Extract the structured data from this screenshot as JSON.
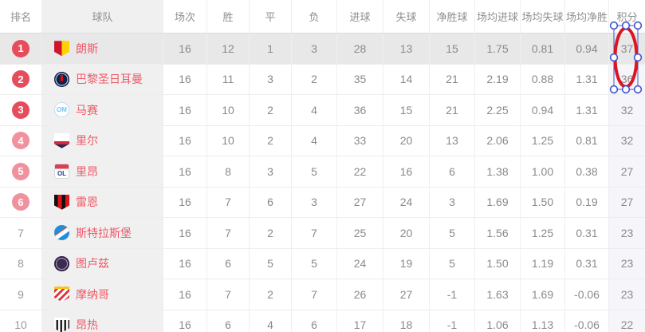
{
  "table": {
    "columns": [
      "排名",
      "球队",
      "场次",
      "胜",
      "平",
      "负",
      "进球",
      "失球",
      "净胜球",
      "场均进球",
      "场均失球",
      "场均净胜",
      "积分"
    ],
    "rows": [
      {
        "rank": "1",
        "rank_style": "red",
        "team": "朗斯",
        "badge": "lens",
        "badge_text": "",
        "stats": [
          "16",
          "12",
          "1",
          "3",
          "28",
          "13",
          "15",
          "1.75",
          "0.81",
          "0.94"
        ],
        "points": "37",
        "highlight": true
      },
      {
        "rank": "2",
        "rank_style": "red",
        "team": "巴黎圣日耳曼",
        "badge": "psg",
        "badge_text": "",
        "stats": [
          "16",
          "11",
          "3",
          "2",
          "35",
          "14",
          "21",
          "2.19",
          "0.88",
          "1.31"
        ],
        "points": "36",
        "highlight": false
      },
      {
        "rank": "3",
        "rank_style": "red",
        "team": "马赛",
        "badge": "marseille",
        "badge_text": "OM",
        "stats": [
          "16",
          "10",
          "2",
          "4",
          "36",
          "15",
          "21",
          "2.25",
          "0.94",
          "1.31"
        ],
        "points": "32",
        "highlight": false
      },
      {
        "rank": "4",
        "rank_style": "pink",
        "team": "里尔",
        "badge": "lille",
        "badge_text": "",
        "stats": [
          "16",
          "10",
          "2",
          "4",
          "33",
          "20",
          "13",
          "2.06",
          "1.25",
          "0.81"
        ],
        "points": "32",
        "highlight": false
      },
      {
        "rank": "5",
        "rank_style": "pink",
        "team": "里昂",
        "badge": "lyon",
        "badge_text": "OL",
        "stats": [
          "16",
          "8",
          "3",
          "5",
          "22",
          "16",
          "6",
          "1.38",
          "1.00",
          "0.38"
        ],
        "points": "27",
        "highlight": false
      },
      {
        "rank": "6",
        "rank_style": "pink",
        "team": "雷恩",
        "badge": "rennes",
        "badge_text": "",
        "stats": [
          "16",
          "7",
          "6",
          "3",
          "27",
          "24",
          "3",
          "1.69",
          "1.50",
          "0.19"
        ],
        "points": "27",
        "highlight": false
      },
      {
        "rank": "7",
        "rank_style": "plain",
        "team": "斯特拉斯堡",
        "badge": "strasbourg",
        "badge_text": "",
        "stats": [
          "16",
          "7",
          "2",
          "7",
          "25",
          "20",
          "5",
          "1.56",
          "1.25",
          "0.31"
        ],
        "points": "23",
        "highlight": false
      },
      {
        "rank": "8",
        "rank_style": "plain",
        "team": "图卢兹",
        "badge": "toulouse",
        "badge_text": "",
        "stats": [
          "16",
          "6",
          "5",
          "5",
          "24",
          "19",
          "5",
          "1.50",
          "1.19",
          "0.31"
        ],
        "points": "23",
        "highlight": false
      },
      {
        "rank": "9",
        "rank_style": "plain",
        "team": "摩纳哥",
        "badge": "monaco",
        "badge_text": "",
        "stats": [
          "16",
          "7",
          "2",
          "7",
          "26",
          "27",
          "-1",
          "1.63",
          "1.69",
          "-0.06"
        ],
        "points": "23",
        "highlight": false
      },
      {
        "rank": "10",
        "rank_style": "plain",
        "team": "昂热",
        "badge": "angers",
        "badge_text": "",
        "stats": [
          "16",
          "6",
          "4",
          "6",
          "17",
          "18",
          "-1",
          "1.06",
          "1.13",
          "-0.06"
        ],
        "points": "22",
        "highlight": false
      }
    ]
  },
  "annotation": {
    "shape": "ellipse",
    "circled_values": [
      "37",
      "36"
    ],
    "stroke_color": "#dc1522",
    "box_color": "#4156ce",
    "handle_fill": "#ffffff"
  },
  "colors": {
    "rank_top3": "#e64d5c",
    "rank_4to6": "#ef929e",
    "team_name": "#f05866",
    "cell_text": "#8a8a8a",
    "header_text": "#8f8f8f",
    "highlight_row_bg": "#e8e8e8",
    "team_col_bg": "#f0f0f0"
  }
}
